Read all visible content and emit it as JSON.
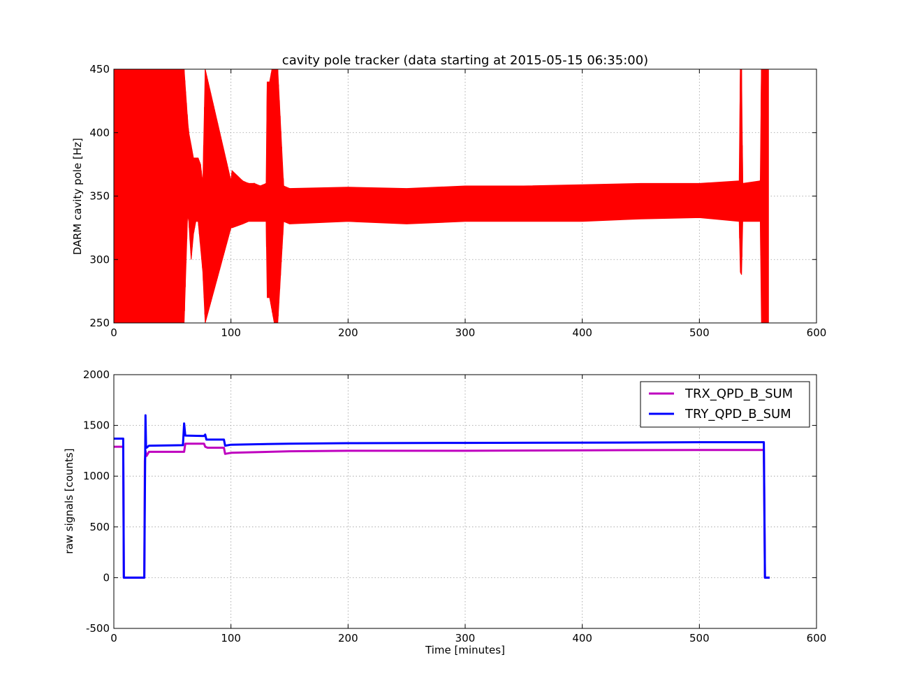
{
  "chart_data": [
    {
      "type": "line",
      "title": "cavity pole tracker (data starting at 2015-05-15 06:35:00)",
      "xlabel": "",
      "ylabel": "DARM cavity pole [Hz]",
      "xlim": [
        0,
        600
      ],
      "ylim": [
        250,
        450
      ],
      "xticks": [
        0,
        100,
        200,
        300,
        400,
        500,
        600
      ],
      "yticks": [
        250,
        300,
        350,
        400,
        450
      ],
      "grid": true,
      "series": [
        {
          "color": "#ff0000",
          "x": [
            0,
            60,
            63,
            64,
            66,
            68,
            70,
            72,
            74,
            76,
            78,
            100,
            101,
            110,
            115,
            120,
            125,
            130,
            131,
            133,
            135,
            137,
            139,
            140,
            145,
            150,
            200,
            250,
            300,
            350,
            400,
            450,
            500,
            534,
            535,
            536,
            537,
            552,
            553,
            559
          ],
          "y": [
            250,
            450,
            380,
            395,
            360,
            345,
            350,
            370,
            340,
            300,
            450,
            345,
            355,
            350,
            345,
            352,
            348,
            345,
            440,
            280,
            300,
            250,
            450,
            420,
            345,
            340,
            342,
            341,
            343,
            342,
            344,
            343,
            342,
            345,
            450,
            290,
            345,
            343,
            250,
            450
          ],
          "y_band_lower": [
            250,
            250,
            335,
            330,
            300,
            320,
            330,
            330,
            310,
            290,
            250,
            325,
            325,
            328,
            330,
            330,
            330,
            330,
            270,
            270,
            260,
            250,
            250,
            250,
            330,
            328,
            330,
            328,
            330,
            330,
            330,
            332,
            333,
            330,
            290,
            288,
            330,
            330,
            250,
            250
          ],
          "y_band_upper": [
            450,
            450,
            410,
            400,
            390,
            380,
            380,
            380,
            375,
            360,
            450,
            362,
            370,
            362,
            360,
            360,
            358,
            360,
            440,
            440,
            450,
            450,
            450,
            450,
            358,
            356,
            357,
            356,
            358,
            358,
            359,
            360,
            360,
            362,
            450,
            450,
            360,
            362,
            450,
            450
          ]
        }
      ]
    },
    {
      "type": "line",
      "title": "",
      "xlabel": "Time [minutes]",
      "ylabel": "raw signals [counts]",
      "xlim": [
        0,
        600
      ],
      "ylim": [
        -500,
        2000
      ],
      "xticks": [
        0,
        100,
        200,
        300,
        400,
        500,
        600
      ],
      "yticks": [
        -500,
        0,
        500,
        1000,
        1500,
        2000
      ],
      "grid": true,
      "legend": "top-right",
      "series": [
        {
          "name": "TRX_QPD_B_SUM",
          "color": "#bf00bf",
          "x": [
            0,
            8,
            8.5,
            26,
            26.5,
            27,
            28,
            30,
            60,
            61,
            77,
            78,
            80,
            94,
            95,
            100,
            150,
            200,
            300,
            400,
            500,
            555,
            556,
            560
          ],
          "y": [
            1290,
            1290,
            0,
            0,
            1150,
            1250,
            1200,
            1240,
            1240,
            1320,
            1320,
            1290,
            1280,
            1280,
            1220,
            1230,
            1245,
            1250,
            1250,
            1255,
            1258,
            1258,
            0,
            0
          ]
        },
        {
          "name": "TRY_QPD_B_SUM",
          "color": "#0000ff",
          "x": [
            0,
            8,
            8.5,
            26,
            26.5,
            27,
            27.5,
            28,
            30,
            59,
            60,
            61,
            77,
            78,
            79,
            94,
            95,
            100,
            150,
            200,
            300,
            400,
            500,
            555,
            556,
            560
          ],
          "y": [
            1370,
            1370,
            0,
            0,
            800,
            1600,
            1300,
            1280,
            1300,
            1305,
            1520,
            1400,
            1395,
            1410,
            1360,
            1360,
            1300,
            1310,
            1320,
            1325,
            1328,
            1330,
            1335,
            1335,
            0,
            0
          ]
        }
      ]
    }
  ]
}
